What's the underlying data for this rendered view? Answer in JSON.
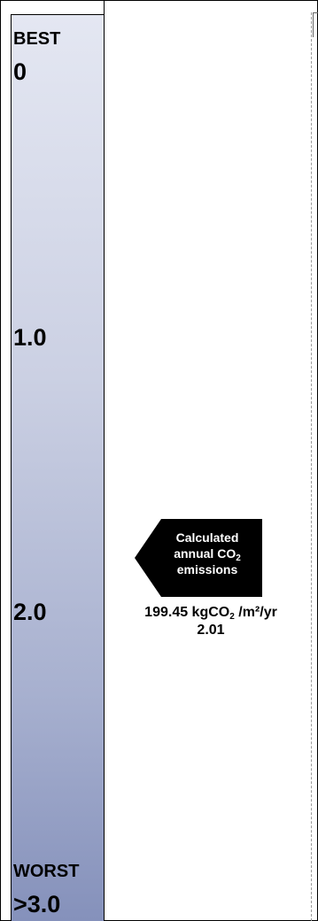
{
  "scale": {
    "best_label": "BEST",
    "best_value": "0",
    "mark_1": "1.0",
    "mark_2": "2.0",
    "worst_label": "WORST",
    "worst_value": ">3.0",
    "min": 0,
    "max": 3.0
  },
  "indicator": {
    "line1": "Calculated",
    "line2_prefix": "annual CO",
    "line2_sub": "2",
    "line3": "emissions",
    "emission_value_prefix": "199.45 kgCO",
    "emission_value_sub": "2",
    "emission_value_suffix": " /m²/yr",
    "rating": "2.01",
    "rating_numeric": 2.01
  },
  "colors": {
    "scale_top": "#e4e7f2",
    "scale_bottom": "#8591bb",
    "marker_fill": "#000000",
    "marker_text": "#ffffff"
  }
}
